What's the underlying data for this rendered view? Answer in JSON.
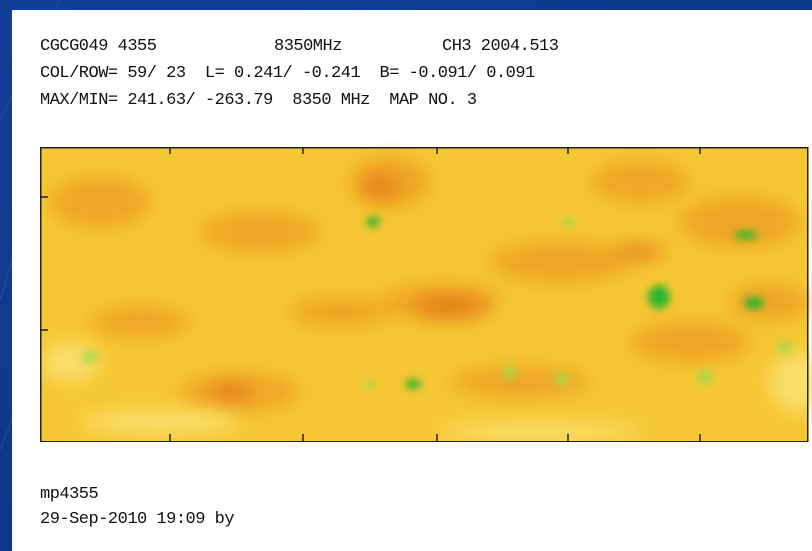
{
  "header": {
    "line1": [
      "CGCG049 4355",
      "8350MHz",
      "CH3 2004.513"
    ],
    "line2": "COL/ROW= 59/ 23  L= 0.241/ -0.241  B= -0.091/ 0.091",
    "line3": "MAX/MIN= 241.63/ -263.79  8350 MHz  MAP NO. 3"
  },
  "footer": {
    "name": "mp4355",
    "date": "29-Sep-2010 19:09 by"
  }
}
